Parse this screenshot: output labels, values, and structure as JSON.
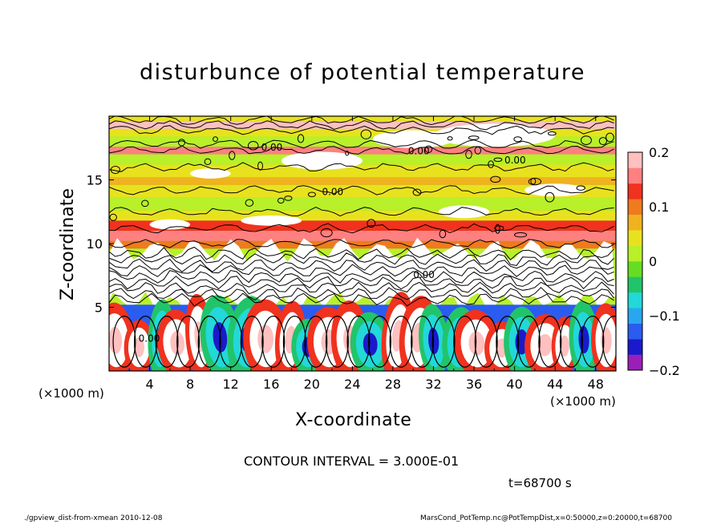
{
  "title": "disturbunce of potential temperature",
  "footer": {
    "left": "./gpview_dist-from-xmean  2010-12-08",
    "right": "MarsCond_PotTemp.nc@PotTempDist,x=0:50000,z=0:20000,t=68700"
  },
  "contour_interval": "CONTOUR INTERVAL = 3.000E-01",
  "time_label": "t=68700 s",
  "chart_data": {
    "type": "heatmap",
    "title": "disturbunce of potential temperature",
    "xlabel": "X-coordinate",
    "ylabel": "Z-coordinate",
    "x_unit": "(×1000 m)",
    "y_unit": "(×1000 m)",
    "xlim": [
      0,
      50
    ],
    "ylim": [
      0,
      20
    ],
    "x_ticks": [
      4,
      8,
      12,
      16,
      20,
      24,
      28,
      32,
      36,
      40,
      44,
      48
    ],
    "y_ticks": [
      5,
      10,
      15
    ],
    "colorbar": {
      "range": [
        -0.2,
        0.2
      ],
      "ticks": [
        {
          "value": 0.2,
          "label": "0.2"
        },
        {
          "value": 0.1,
          "label": "0.1"
        },
        {
          "value": 0,
          "label": "0"
        },
        {
          "value": -0.1,
          "label": "−0.1"
        },
        {
          "value": -0.2,
          "label": "−0.2"
        }
      ],
      "colors": [
        "#9a1fb8",
        "#1a1acc",
        "#2a5cf0",
        "#2aa6f0",
        "#22d8d8",
        "#22c46a",
        "#66dd22",
        "#b8f02a",
        "#e8e21e",
        "#f0b21e",
        "#f07a1e",
        "#f0321e",
        "#ff8080",
        "#ffc0c0"
      ]
    },
    "contour_labels": [
      "0.00",
      "0.00",
      "0.00",
      "0.00",
      "0.00",
      "0.00"
    ],
    "notes": "Field of potential temperature disturbance: horizontal banding near zero above z=10 (green/yellow/red bands), turbulent white (out-of-range) region around z=6-10, and convective plumes below z=5 alternating positive (red/white) and negative (blue/white)."
  }
}
